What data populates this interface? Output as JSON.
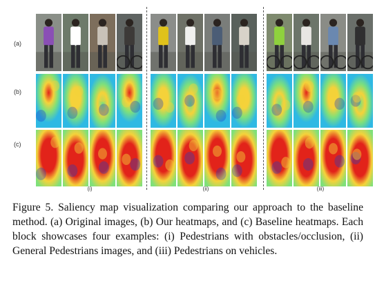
{
  "figure": {
    "row_labels": [
      "(a)",
      "(b)",
      "(c)"
    ],
    "block_labels": [
      "(i)",
      "(ii)",
      "(iii)"
    ],
    "rows": [
      "original",
      "ours",
      "baseline"
    ],
    "palette": {
      "original_bg": [
        "#8a8f88",
        "#6d7a6a",
        "#7d6e5c",
        "#5f6462",
        "#8b8d8a",
        "#6e7167",
        "#7a7d7a",
        "#59615c",
        "#7e8a6e",
        "#6c756a",
        "#8a8c86",
        "#6a6f6a"
      ],
      "shirt": [
        "#8a4fb5",
        "#ffffff",
        "#c9c2b8",
        "#3d3a38",
        "#e0c21b",
        "#f0f0ee",
        "#4b5d76",
        "#d8d3c9",
        "#8fd13d",
        "#e8e6e3",
        "#6a88b0",
        "#2f2f30"
      ],
      "heat_cold": "#1c3fc4",
      "heat_cool": "#2fb9e3",
      "heat_mid": "#7fe07a",
      "heat_warm": "#f5d23a",
      "heat_hot": "#e2231a"
    }
  },
  "caption": {
    "text": "Figure 5. Saliency map visualization comparing our approach to the baseline method. (a) Original images, (b) Our heatmaps, and (c) Baseline heatmaps. Each block showcases four examples: (i) Pedestrians with obstacles/occlusion, (ii) General Pedestrians images, and (iii) Pedestrians on vehicles."
  }
}
